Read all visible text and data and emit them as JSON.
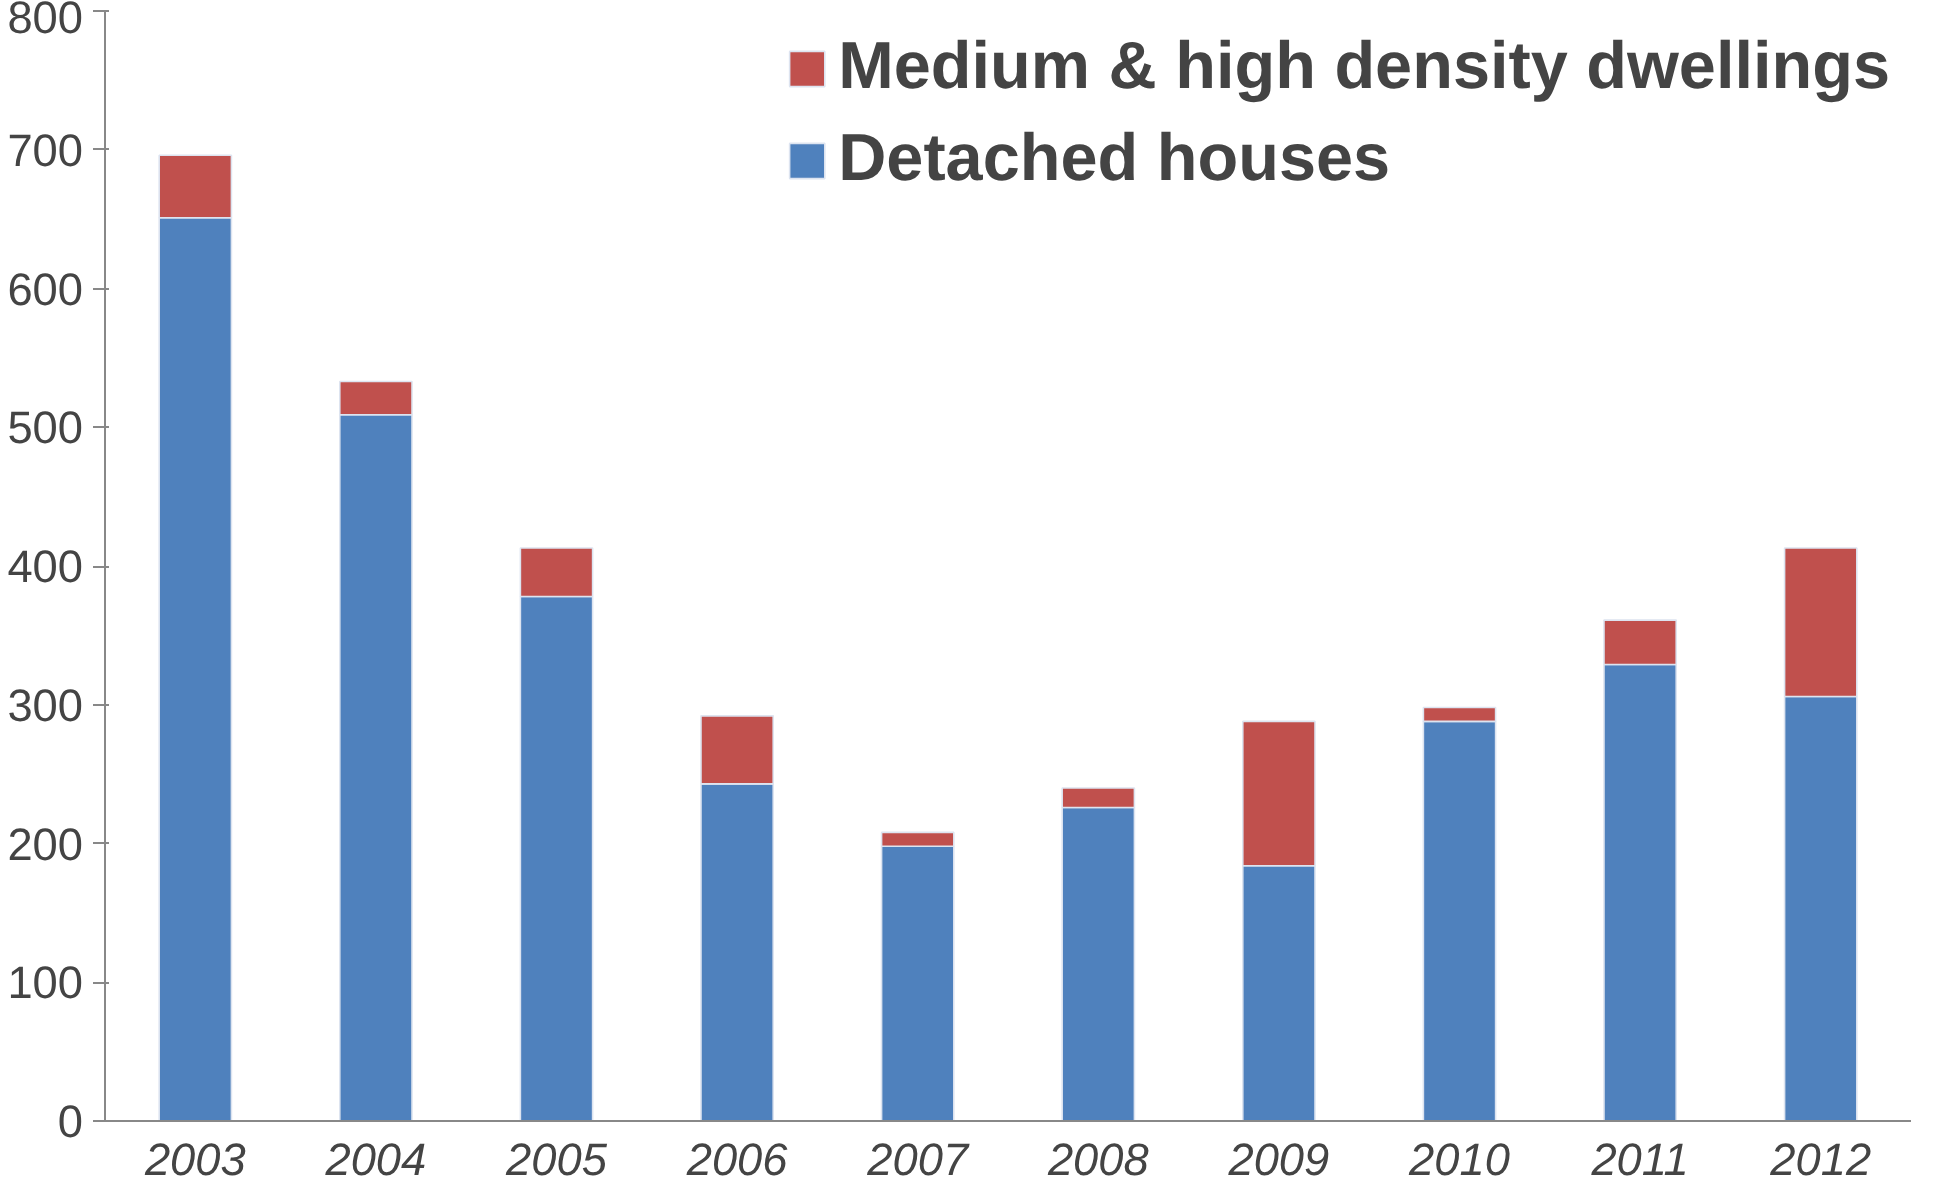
{
  "chart_data": {
    "type": "bar",
    "stacked": true,
    "categories": [
      "2003",
      "2004",
      "2005",
      "2006",
      "2007",
      "2008",
      "2009",
      "2010",
      "2011",
      "2012"
    ],
    "series": [
      {
        "name": "Detached houses",
        "color": "#4f81bd",
        "values": [
          651,
          509,
          378,
          243,
          198,
          226,
          184,
          288,
          329,
          306
        ]
      },
      {
        "name": "Medium & high density dwellings",
        "color": "#c0504d",
        "values": [
          45,
          24,
          35,
          49,
          10,
          14,
          104,
          10,
          32,
          107
        ]
      }
    ],
    "ylim": [
      0,
      800
    ],
    "yticks": [
      0,
      100,
      200,
      300,
      400,
      500,
      600,
      700,
      800
    ],
    "grid": false,
    "legend": "top right"
  }
}
